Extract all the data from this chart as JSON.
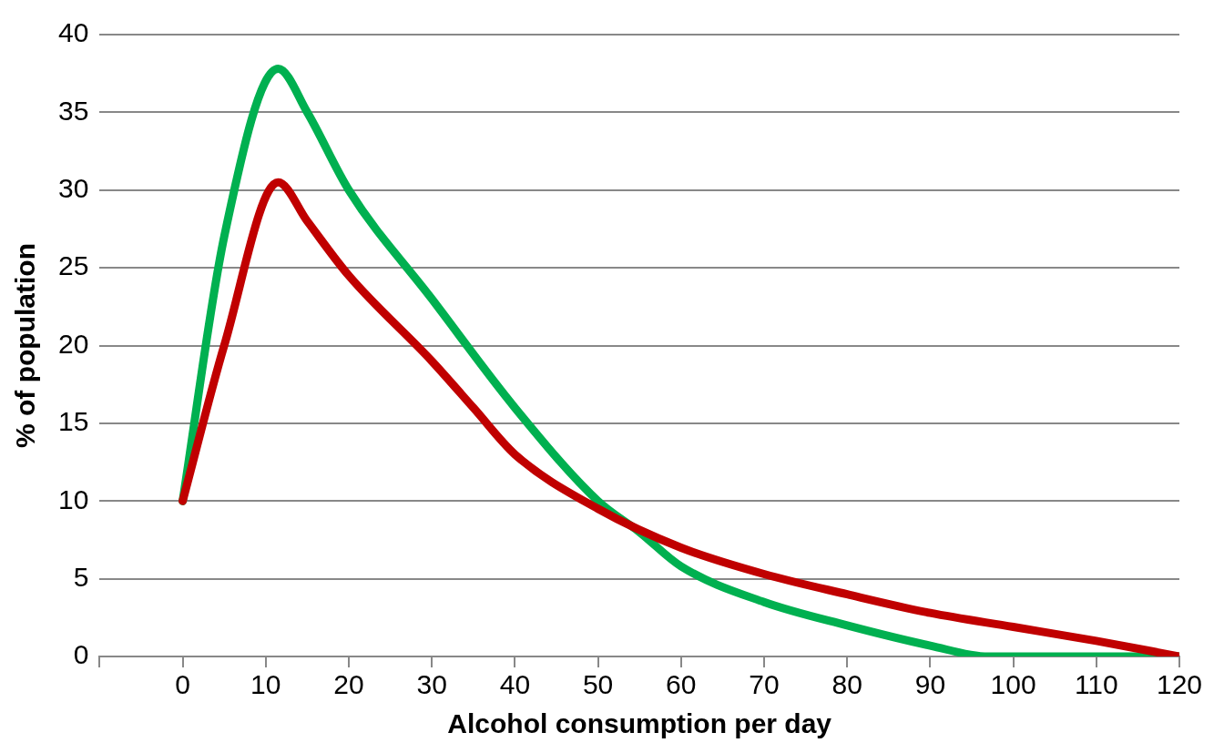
{
  "chart_data": {
    "type": "line",
    "xlabel": "Alcohol consumption per day",
    "ylabel": "% of population",
    "xlim": [
      -10,
      120
    ],
    "xticks": [
      {
        "value": -10,
        "label": null
      },
      0,
      10,
      20,
      30,
      40,
      50,
      60,
      70,
      80,
      90,
      100,
      110,
      120
    ],
    "ylim": [
      0,
      40
    ],
    "yticks": [
      0,
      5,
      10,
      15,
      20,
      25,
      30,
      35,
      40
    ],
    "grid": "y",
    "legend": false,
    "marker": "none",
    "line_style": "solid",
    "series": [
      {
        "color": "#c00000",
        "x": [
          0,
          5,
          11.5,
          15,
          20,
          30,
          35,
          40,
          50,
          60,
          70,
          80,
          90,
          100,
          110,
          120
        ],
        "values": [
          10,
          20,
          30.5,
          28,
          24.5,
          19,
          16,
          13,
          9.5,
          7,
          5.3,
          4,
          2.8,
          1.9,
          1,
          0
        ]
      },
      {
        "color": "#00b050",
        "x": [
          0,
          5,
          11.5,
          15,
          20,
          30,
          40,
          50,
          55,
          60,
          70,
          80,
          90,
          97,
          100,
          110,
          120
        ],
        "values": [
          10,
          27,
          37.8,
          35,
          30,
          23,
          16,
          10,
          8,
          5.8,
          3.5,
          2,
          0.7,
          0,
          0,
          0,
          0
        ]
      }
    ]
  }
}
